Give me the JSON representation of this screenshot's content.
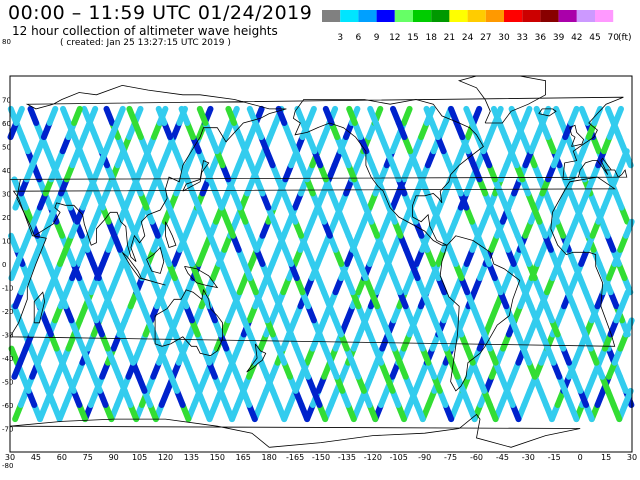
{
  "header": {
    "title": "00:00 – 11:59 UTC 01/24/2019",
    "subtitle": "12 hour collection of altimeter wave heights",
    "created": "( created: Jan 25 13:27:15 UTC 2019 )"
  },
  "legend": {
    "unit": "(ft)",
    "bins": [
      {
        "label": "3",
        "color": "#808080"
      },
      {
        "label": "6",
        "color": "#00e5ff"
      },
      {
        "label": "9",
        "color": "#00a0ff"
      },
      {
        "label": "12",
        "color": "#0000ff"
      },
      {
        "label": "15",
        "color": "#66ff66"
      },
      {
        "label": "18",
        "color": "#00cc00"
      },
      {
        "label": "21",
        "color": "#009900"
      },
      {
        "label": "24",
        "color": "#ffff00"
      },
      {
        "label": "27",
        "color": "#ffcc00"
      },
      {
        "label": "30",
        "color": "#ff9900"
      },
      {
        "label": "33",
        "color": "#ff0000"
      },
      {
        "label": "36",
        "color": "#cc0000"
      },
      {
        "label": "39",
        "color": "#880000"
      },
      {
        "label": "42",
        "color": "#aa00aa"
      },
      {
        "label": "45",
        "color": "#cc99ff"
      },
      {
        "label": "70",
        "color": "#ff99ff"
      }
    ]
  },
  "map": {
    "lon_ticks": [
      "30",
      "45",
      "60",
      "75",
      "90",
      "105",
      "120",
      "135",
      "150",
      "165",
      "180",
      "-165",
      "-150",
      "-135",
      "-120",
      "-105",
      "-90",
      "-75",
      "-60",
      "-45",
      "-30",
      "-15",
      "0",
      "15",
      "30"
    ],
    "lat_ticks": [
      "80",
      "70",
      "60",
      "50",
      "40",
      "30",
      "20",
      "10",
      "0",
      "-10",
      "-20",
      "-30",
      "-40",
      "-50",
      "-60",
      "-70",
      "-80"
    ],
    "lat_range": [
      -80,
      80
    ],
    "lon_range": [
      30,
      390
    ],
    "colors": {
      "track_light": "#33ccee",
      "track_dark": "#0022cc",
      "track_green": "#33dd33",
      "coast": "#000000",
      "grid": "#000000"
    }
  }
}
